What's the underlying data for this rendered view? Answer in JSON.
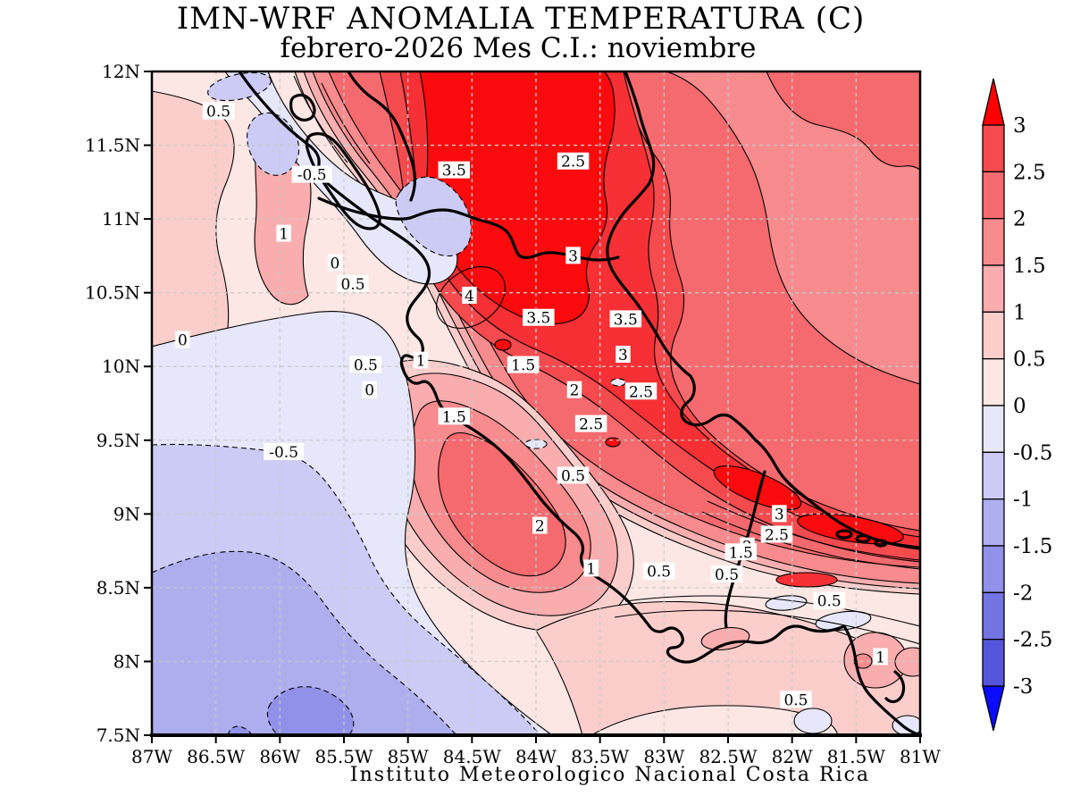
{
  "title": "IMN-WRF  ANOMALIA TEMPERATURA (C)",
  "subtitle": "febrero-2026 Mes C.I.: noviembre",
  "footer": "Instituto Meteorologico Nacional Costa Rica",
  "chart_data": {
    "type": "heatmap",
    "subtype": "filled-contour-map",
    "variable": "ANOMALIA TEMPERATURA (C)",
    "period": "febrero-2026",
    "init_month": "noviembre",
    "contour_interval": 0.5,
    "grid": true,
    "axes": {
      "x": {
        "unit": "degrees West",
        "range": [
          87,
          81
        ],
        "ticks": [
          {
            "label": "87W",
            "lon": 87
          },
          {
            "label": "86.5W",
            "lon": 86.5
          },
          {
            "label": "86W",
            "lon": 86
          },
          {
            "label": "85.5W",
            "lon": 85.5
          },
          {
            "label": "85W",
            "lon": 85
          },
          {
            "label": "84.5W",
            "lon": 84.5
          },
          {
            "label": "84W",
            "lon": 84
          },
          {
            "label": "83.5W",
            "lon": 83.5
          },
          {
            "label": "83W",
            "lon": 83
          },
          {
            "label": "82.5W",
            "lon": 82.5
          },
          {
            "label": "82W",
            "lon": 82
          },
          {
            "label": "81.5W",
            "lon": 81.5
          },
          {
            "label": "81W",
            "lon": 81
          }
        ]
      },
      "y": {
        "unit": "degrees North",
        "range": [
          7.5,
          12
        ],
        "ticks": [
          {
            "label": "12N",
            "lat": 12
          },
          {
            "label": "11.5N",
            "lat": 11.5
          },
          {
            "label": "11N",
            "lat": 11
          },
          {
            "label": "10.5N",
            "lat": 10.5
          },
          {
            "label": "10N",
            "lat": 10
          },
          {
            "label": "9.5N",
            "lat": 9.5
          },
          {
            "label": "9N",
            "lat": 9
          },
          {
            "label": "8.5N",
            "lat": 8.5
          },
          {
            "label": "8N",
            "lat": 8
          },
          {
            "label": "7.5N",
            "lat": 7.5
          }
        ]
      }
    },
    "colorbar": {
      "position": "right",
      "tick_labels": [
        "3",
        "2.5",
        "2",
        "1.5",
        "1",
        "0.5",
        "0",
        "-0.5",
        "-1",
        "-1.5",
        "-2",
        "-2.5",
        "-3"
      ],
      "segment_palette_keys_top_to_bottom": [
        "p25",
        "p20",
        "p15",
        "p10",
        "p05",
        "p00",
        "m00",
        "m05",
        "m10",
        "m15",
        "m20",
        "m25"
      ],
      "arrow_top_color": "#FE0000",
      "arrow_bottom_color": "#0B0BFF"
    },
    "palette": {
      "p00": "#FDE7E4",
      "p05": "#FBCECC",
      "p10": "#F9ADAF",
      "p15": "#F78B8D",
      "p20": "#F56A6E",
      "p25": "#F54A4E",
      "p30": "#F63034",
      "p35": "#FB0B0E",
      "m00": "#E7E7FB",
      "m05": "#CBCBF5",
      "m10": "#AEAEEF",
      "m15": "#9191E9",
      "m20": "#7373E2",
      "m25": "#5555DB",
      "m30": "#0B0BFF"
    },
    "contour_labels": [
      {
        "v": "0.5",
        "lon": 86.48,
        "lat": 11.73
      },
      {
        "v": "-0.5",
        "lon": 85.75,
        "lat": 11.3
      },
      {
        "v": "1",
        "lon": 85.97,
        "lat": 10.9
      },
      {
        "v": "0",
        "lon": 85.57,
        "lat": 10.7
      },
      {
        "v": "0.5",
        "lon": 85.43,
        "lat": 10.56
      },
      {
        "v": "3.5",
        "lon": 84.64,
        "lat": 11.33
      },
      {
        "v": "2.5",
        "lon": 83.71,
        "lat": 11.39
      },
      {
        "v": "3",
        "lon": 83.71,
        "lat": 10.75
      },
      {
        "v": "4",
        "lon": 84.52,
        "lat": 10.48
      },
      {
        "v": "3.5",
        "lon": 83.98,
        "lat": 10.33
      },
      {
        "v": "3.5",
        "lon": 83.3,
        "lat": 10.32
      },
      {
        "v": "3",
        "lon": 83.32,
        "lat": 10.08
      },
      {
        "v": "0",
        "lon": 86.76,
        "lat": 10.18
      },
      {
        "v": "0.5",
        "lon": 85.33,
        "lat": 10.01
      },
      {
        "v": "1",
        "lon": 84.9,
        "lat": 10.04
      },
      {
        "v": "0",
        "lon": 85.3,
        "lat": 9.84
      },
      {
        "v": "1.5",
        "lon": 84.1,
        "lat": 10.01
      },
      {
        "v": "2",
        "lon": 83.7,
        "lat": 9.84
      },
      {
        "v": "2.5",
        "lon": 83.18,
        "lat": 9.83
      },
      {
        "v": "1.5",
        "lon": 84.64,
        "lat": 9.66
      },
      {
        "v": "2.5",
        "lon": 83.57,
        "lat": 9.61
      },
      {
        "v": "-0.5",
        "lon": 85.97,
        "lat": 9.42
      },
      {
        "v": "0.5",
        "lon": 83.71,
        "lat": 9.26
      },
      {
        "v": "2",
        "lon": 83.97,
        "lat": 8.92
      },
      {
        "v": "3",
        "lon": 82.1,
        "lat": 9.0
      },
      {
        "v": "2.5",
        "lon": 82.12,
        "lat": 8.86
      },
      {
        "v": "2",
        "lon": 82.35,
        "lat": 8.78
      },
      {
        "v": "1.5",
        "lon": 82.4,
        "lat": 8.74
      },
      {
        "v": "1",
        "lon": 83.57,
        "lat": 8.63
      },
      {
        "v": "0.5",
        "lon": 83.04,
        "lat": 8.61
      },
      {
        "v": "0.5",
        "lon": 82.51,
        "lat": 8.59
      },
      {
        "v": "0.5",
        "lon": 81.71,
        "lat": 8.41
      },
      {
        "v": "1",
        "lon": 81.31,
        "lat": 8.03
      },
      {
        "v": "0.5",
        "lon": 81.97,
        "lat": 7.74
      }
    ]
  }
}
